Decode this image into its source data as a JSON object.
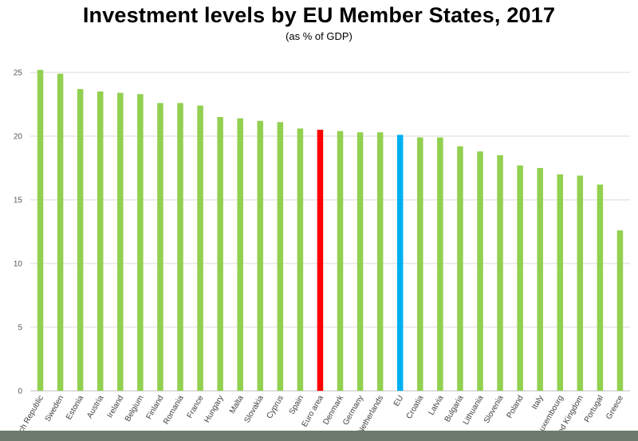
{
  "chart_data": {
    "type": "bar",
    "title": "Investment levels by EU Member States, 2017",
    "subtitle": "(as % of GDP)",
    "xlabel": "",
    "ylabel": "",
    "ylim": [
      0,
      25
    ],
    "yticks": [
      0,
      5,
      10,
      15,
      20,
      25
    ],
    "grid": true,
    "legend": "none",
    "categories": [
      "Czech Republic",
      "Sweden",
      "Estonia",
      "Austria",
      "Ireland",
      "Belgium",
      "Finland",
      "Romania",
      "France",
      "Hungary",
      "Malta",
      "Slovakia",
      "Cyprus",
      "Spain",
      "Euro area",
      "Denmark",
      "Germany",
      "Netherlands",
      "EU",
      "Croatia",
      "Latvia",
      "Bulgaria",
      "Lithuania",
      "Slovenia",
      "Poland",
      "Italy",
      "Luxembourg",
      "United Kingdom",
      "Portugal",
      "Greece"
    ],
    "values": [
      25.2,
      24.9,
      23.7,
      23.5,
      23.4,
      23.3,
      22.6,
      22.6,
      22.4,
      21.5,
      21.4,
      21.2,
      21.1,
      20.6,
      20.5,
      20.4,
      20.3,
      20.3,
      20.1,
      19.9,
      19.9,
      19.2,
      18.8,
      18.5,
      17.7,
      17.5,
      17.0,
      16.9,
      16.2,
      12.6
    ],
    "colors": {
      "default": "#92d050",
      "highlight": {
        "Euro area": "#ff0000",
        "EU": "#00b0f0"
      },
      "gridline": "#d9d9d9",
      "axis": "#bfbfbf"
    }
  }
}
